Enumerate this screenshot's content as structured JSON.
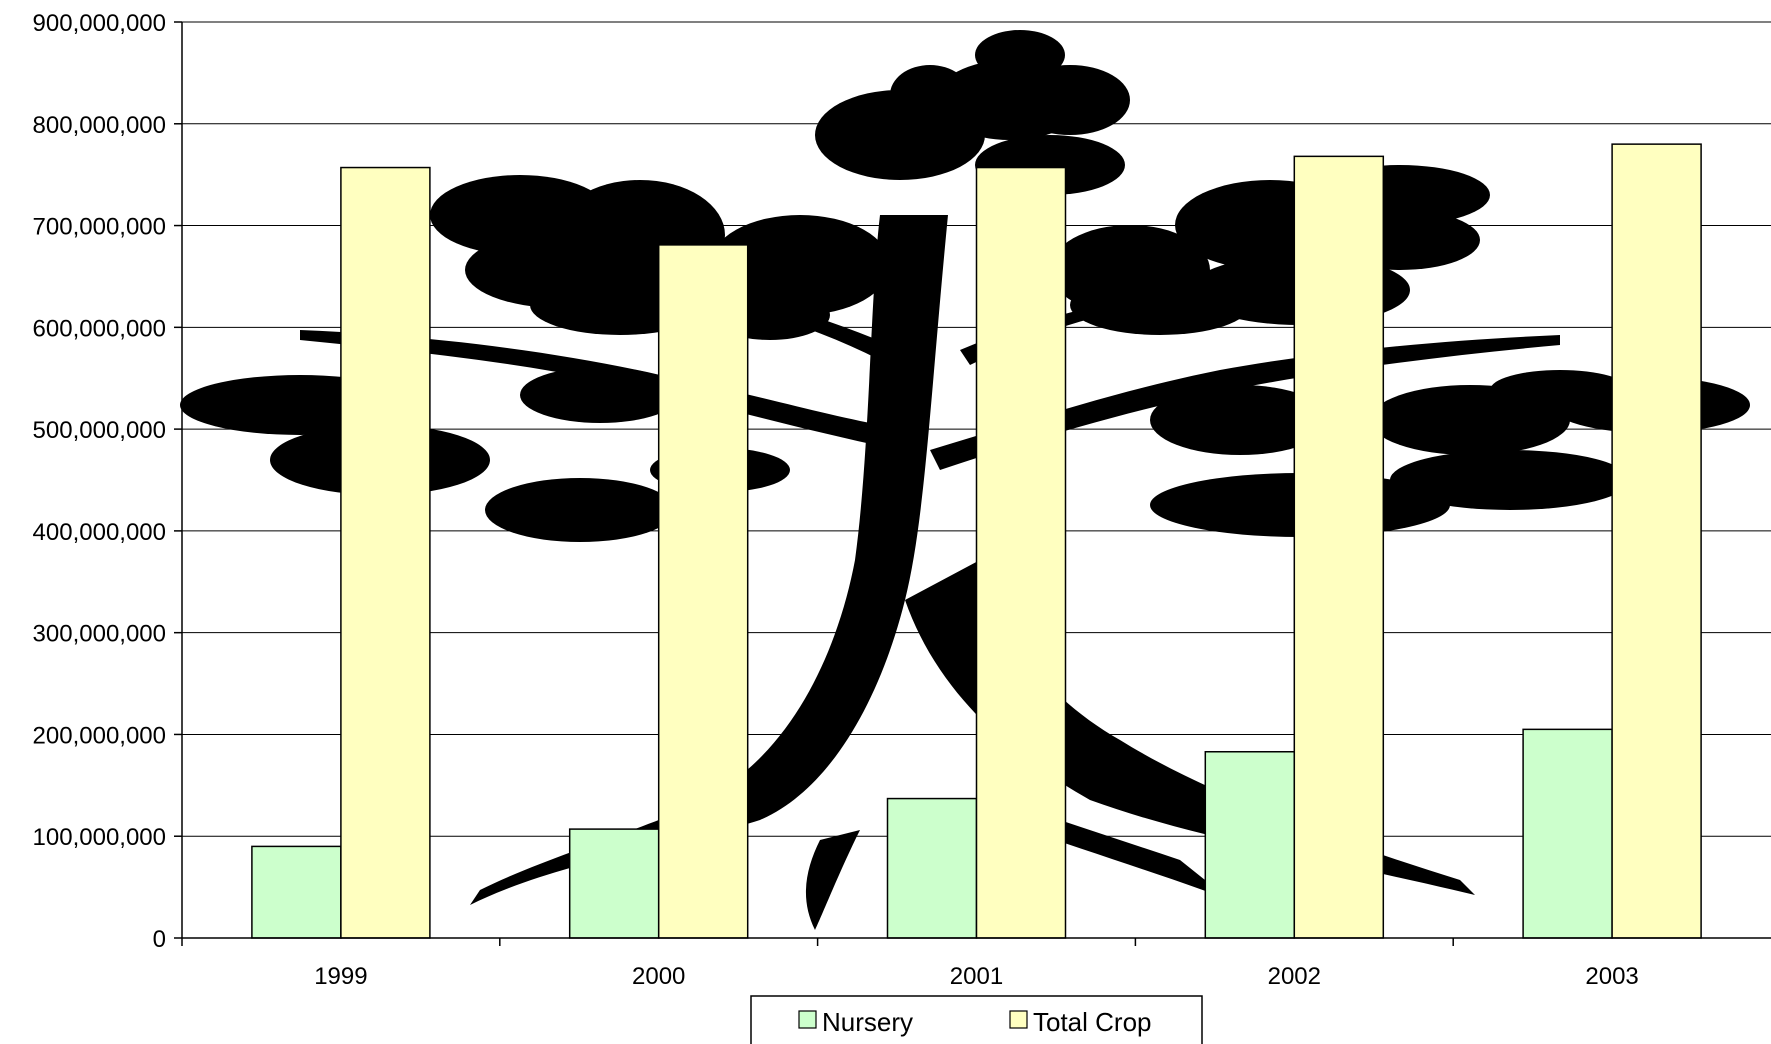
{
  "chart_data": {
    "type": "bar",
    "categories": [
      "1999",
      "2000",
      "2001",
      "2002",
      "2003"
    ],
    "series": [
      {
        "name": "Nursery",
        "color": "#ccffcc",
        "values": [
          90000000,
          107000000,
          137000000,
          183000000,
          205000000
        ]
      },
      {
        "name": "Total Crop",
        "color": "#ffffc0",
        "values": [
          757000000,
          681000000,
          757000000,
          768000000,
          780000000
        ]
      }
    ],
    "ylim": [
      0,
      900000000
    ],
    "yticks": [
      0,
      100000000,
      200000000,
      300000000,
      400000000,
      500000000,
      600000000,
      700000000,
      800000000,
      900000000
    ],
    "ytick_labels": [
      "0",
      "100,000,000",
      "200,000,000",
      "300,000,000",
      "400,000,000",
      "500,000,000",
      "600,000,000",
      "700,000,000",
      "800,000,000",
      "900,000,000"
    ],
    "grid": true,
    "legend": "bottom",
    "background_image": "tree-silhouette",
    "title": "",
    "xlabel": "",
    "ylabel": ""
  }
}
